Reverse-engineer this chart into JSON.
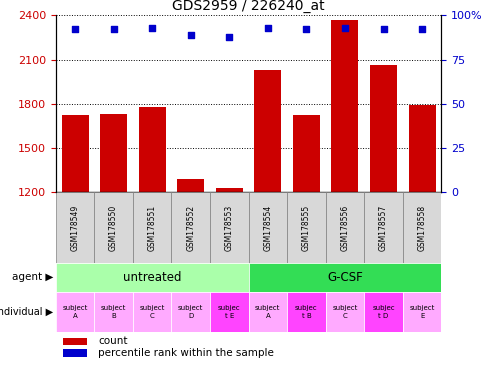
{
  "title": "GDS2959 / 226240_at",
  "samples": [
    "GSM178549",
    "GSM178550",
    "GSM178551",
    "GSM178552",
    "GSM178553",
    "GSM178554",
    "GSM178555",
    "GSM178556",
    "GSM178557",
    "GSM178558"
  ],
  "counts": [
    1720,
    1730,
    1780,
    1290,
    1230,
    2030,
    1720,
    2370,
    2060,
    1790
  ],
  "percentile_ranks": [
    92,
    92,
    93,
    89,
    88,
    93,
    92,
    93,
    92,
    92
  ],
  "ylim_left": [
    1200,
    2400
  ],
  "ylim_right": [
    0,
    100
  ],
  "yticks_left": [
    1200,
    1500,
    1800,
    2100,
    2400
  ],
  "yticks_right": [
    0,
    25,
    50,
    75,
    100
  ],
  "bar_color": "#cc0000",
  "dot_color": "#0000cc",
  "agent_groups": [
    {
      "label": "untreated",
      "start": 0,
      "end": 5,
      "color": "#aaffaa"
    },
    {
      "label": "G-CSF",
      "start": 5,
      "end": 10,
      "color": "#33dd55"
    }
  ],
  "individuals": [
    {
      "label": "subject\nA",
      "idx": 0,
      "color": "#ffaaff"
    },
    {
      "label": "subject\nB",
      "idx": 1,
      "color": "#ffaaff"
    },
    {
      "label": "subject\nC",
      "idx": 2,
      "color": "#ffaaff"
    },
    {
      "label": "subject\nD",
      "idx": 3,
      "color": "#ffaaff"
    },
    {
      "label": "subjec\nt E",
      "idx": 4,
      "color": "#ff44ff"
    },
    {
      "label": "subject\nA",
      "idx": 5,
      "color": "#ffaaff"
    },
    {
      "label": "subjec\nt B",
      "idx": 6,
      "color": "#ff44ff"
    },
    {
      "label": "subject\nC",
      "idx": 7,
      "color": "#ffaaff"
    },
    {
      "label": "subjec\nt D",
      "idx": 8,
      "color": "#ff44ff"
    },
    {
      "label": "subject\nE",
      "idx": 9,
      "color": "#ffaaff"
    }
  ],
  "legend_items": [
    {
      "color": "#cc0000",
      "label": "count"
    },
    {
      "color": "#0000cc",
      "label": "percentile rank within the sample"
    }
  ],
  "bar_width": 0.7,
  "tick_label_color_left": "#cc0000",
  "tick_label_color_right": "#0000cc",
  "sample_bg_color": "#d8d8d8",
  "agent_label": "agent",
  "individual_label": "individual"
}
